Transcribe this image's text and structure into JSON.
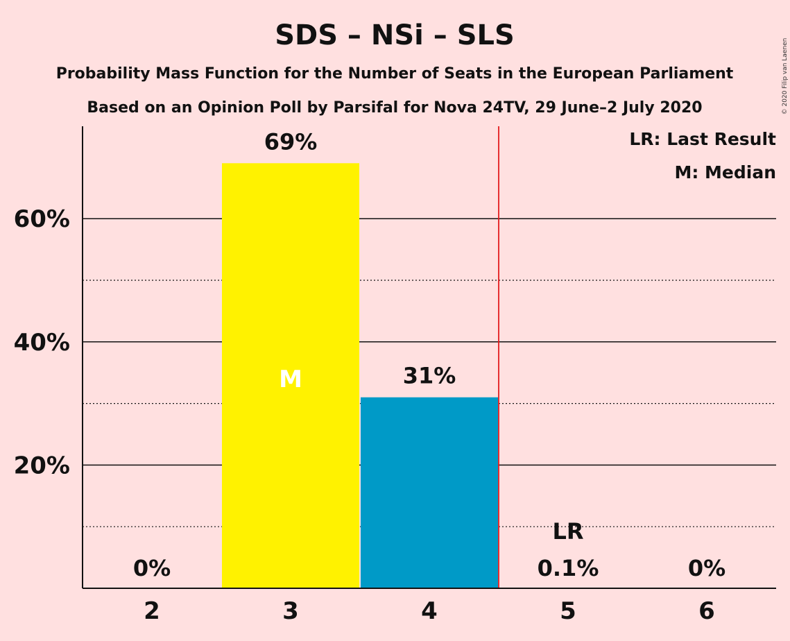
{
  "chart_data": {
    "type": "bar",
    "title": "SDS – NSi – SLS",
    "subtitle": "Probability Mass Function for the Number of Seats in the European Parliament",
    "subtitle2": "Based on an Opinion Poll by Parsifal for Nova 24TV, 29 June–2 July 2020",
    "copyright": "© 2020 Filip van Laenen",
    "categories": [
      "2",
      "3",
      "4",
      "5",
      "6"
    ],
    "values": [
      0,
      69,
      31,
      0.1,
      0
    ],
    "value_labels": [
      "0%",
      "69%",
      "31%",
      "0.1%",
      "0%"
    ],
    "bar_colors": [
      "#FFF200",
      "#FFF200",
      "#009AC7",
      "#009AC7",
      "#009AC7"
    ],
    "ylim": [
      0,
      75
    ],
    "yticks": [
      20,
      40,
      60
    ],
    "ytick_labels": [
      "20%",
      "40%",
      "60%"
    ],
    "minor_gridlines": [
      10,
      30,
      50
    ],
    "median_category": "3",
    "median_marker": "M",
    "last_result_category": "5",
    "last_result_marker": "LR",
    "last_result_line_color": "#E41A1C",
    "legend": [
      "LR: Last Result",
      "M: Median"
    ],
    "legend_position": "top-right"
  }
}
